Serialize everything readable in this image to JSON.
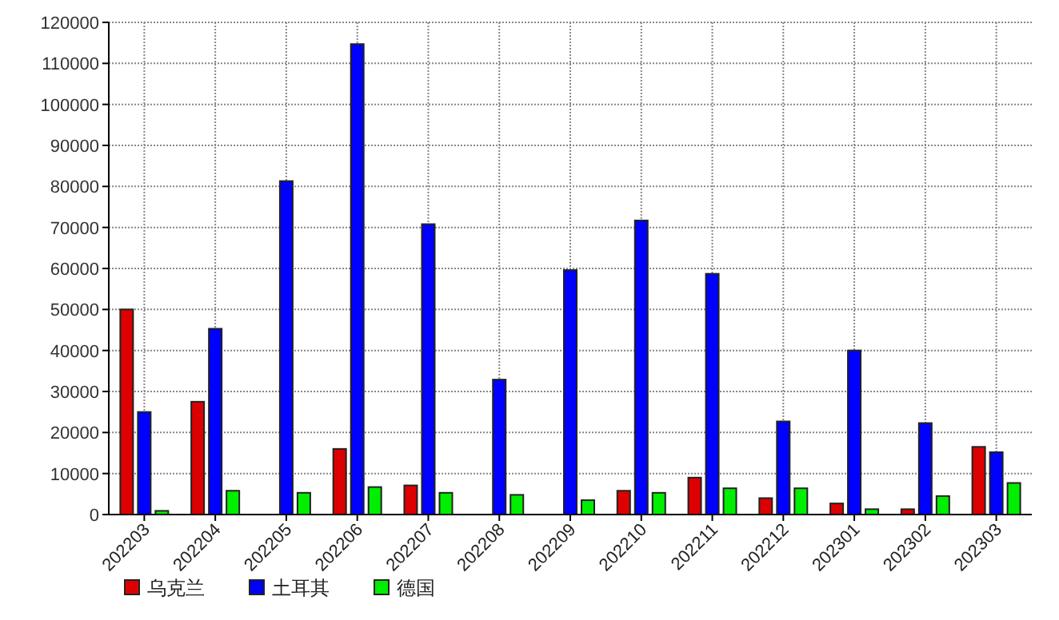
{
  "chart_data": {
    "type": "bar",
    "categories": [
      "202203",
      "202204",
      "202205",
      "202206",
      "202207",
      "202208",
      "202209",
      "202210",
      "202211",
      "202212",
      "202301",
      "202302",
      "202303"
    ],
    "series": [
      {
        "name": "乌克兰",
        "color": "#dd0000",
        "values": [
          50000,
          27500,
          null,
          16000,
          7100,
          null,
          null,
          5800,
          9000,
          4000,
          2700,
          1300,
          16500
        ]
      },
      {
        "name": "土耳其",
        "color": "#0000ff",
        "values": [
          25000,
          45300,
          81300,
          114700,
          70800,
          32900,
          59600,
          71700,
          58700,
          22700,
          40000,
          22300,
          15200
        ]
      },
      {
        "name": "德国",
        "color": "#00ee00",
        "values": [
          900,
          5800,
          5300,
          6700,
          5300,
          4800,
          3500,
          5300,
          6400,
          6400,
          1300,
          4500,
          7700
        ]
      }
    ],
    "ylim": [
      0,
      120000
    ],
    "yticks": [
      0,
      10000,
      20000,
      30000,
      40000,
      50000,
      60000,
      70000,
      80000,
      90000,
      100000,
      110000,
      120000
    ],
    "grid": true,
    "legend": "bottom left"
  }
}
